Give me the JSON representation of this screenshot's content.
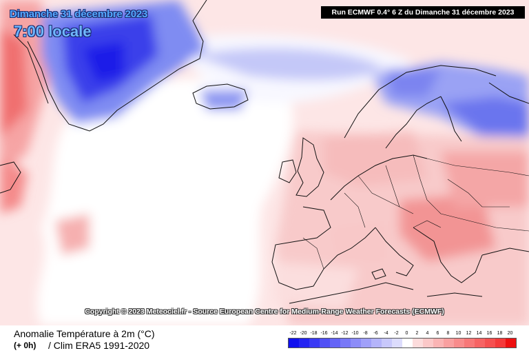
{
  "header": {
    "date": "Dimanche 31 décembre 2023",
    "time": "7:00 locale",
    "run": "Run ECMWF 0.4° 6 Z du Dimanche 31 décembre 2023"
  },
  "copyright": "Copyright © 2023 Meteociel.fr - Source European Centre for Medium-Range Weather Forecasts (ECMWF)",
  "footer": {
    "title": "Anomalie Température à 2m (°C)",
    "step": "(+ 0h)",
    "clim": "/ Clim ERA5 1991-2020"
  },
  "legend": {
    "labels": [
      "-22",
      "-20",
      "-18",
      "-16",
      "-14",
      "-12",
      "-10",
      "-8",
      "-6",
      "-4",
      "-2",
      "0",
      "2",
      "4",
      "6",
      "8",
      "10",
      "12",
      "14",
      "16",
      "18",
      "20"
    ],
    "colors": [
      "#1010ee",
      "#2424f2",
      "#3a3af4",
      "#5050f5",
      "#6464f6",
      "#7878f7",
      "#8c8cf8",
      "#a0a0f9",
      "#b4b4fa",
      "#c8c8fb",
      "#dcdcfc",
      "#ffffff",
      "#fcdcdc",
      "#fbc8c8",
      "#fab4b4",
      "#f9a0a0",
      "#f88c8c",
      "#f77878",
      "#f66464",
      "#f55050",
      "#f43a3a",
      "#ee1010"
    ]
  },
  "map": {
    "region": "Atlantique Nord / Europe",
    "colors": {
      "cold_deep": "#1a1ae8",
      "cold": "#6a78f0",
      "cold_light": "#c8ccf8",
      "neutral": "#ffffff",
      "warm_light": "#fbd9d9",
      "warm": "#f7aaaa",
      "hot": "#f05a5a",
      "border": "#111111"
    }
  }
}
